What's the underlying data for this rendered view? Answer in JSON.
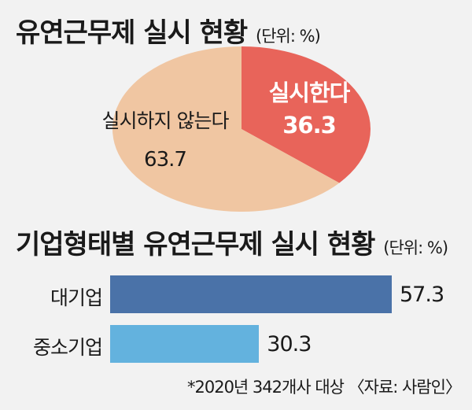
{
  "chart_data": [
    {
      "type": "pie",
      "title": "유연근무제 실시 현황",
      "unit": "(단위: %)",
      "slices": [
        {
          "label": "실시한다",
          "value": 36.3,
          "color": "#e8645a"
        },
        {
          "label": "실시하지 않는다",
          "value": 63.7,
          "color": "#f0c6a2"
        }
      ]
    },
    {
      "type": "bar",
      "orientation": "horizontal",
      "title": "기업형태별 유연근무제 실시 현황",
      "unit": "(단위: %)",
      "categories": [
        "대기업",
        "중소기업"
      ],
      "values": [
        57.3,
        30.3
      ],
      "colors": [
        "#4a72a8",
        "#63b2de"
      ],
      "xlim": [
        0,
        57.3
      ]
    }
  ],
  "footnote": "*2020년 342개사 대상 〈자료: 사람인〉"
}
